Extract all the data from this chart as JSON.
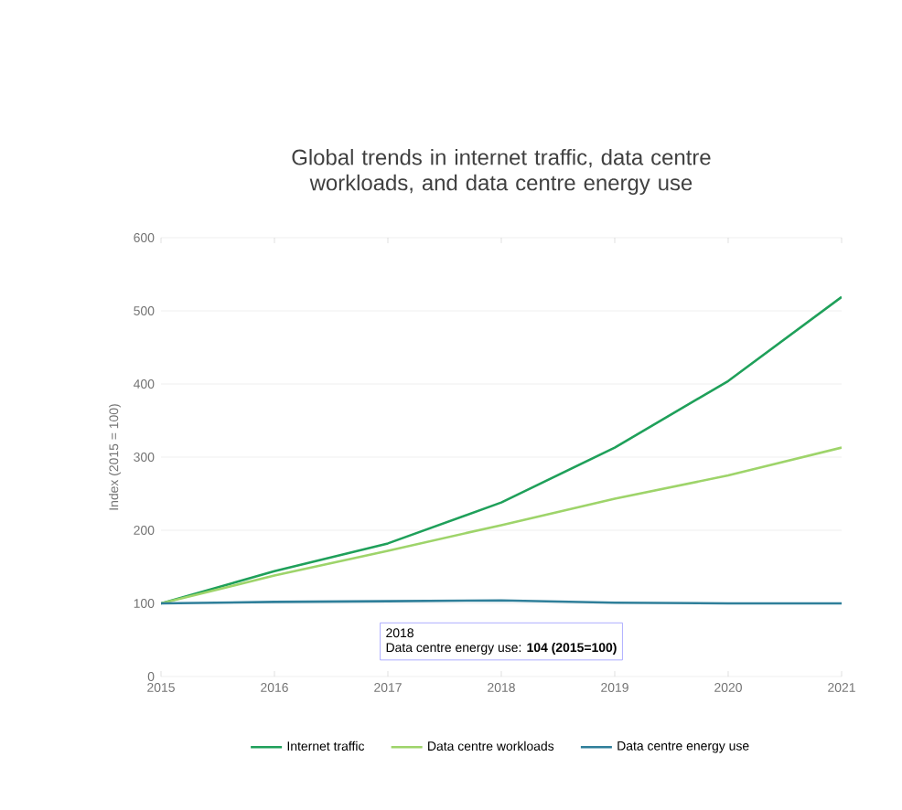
{
  "chart_data": {
    "type": "line",
    "title": "Global trends in internet traffic, data centre workloads, and data centre energy use",
    "ylabel": "Index (2015 = 100)",
    "x": [
      2015,
      2016,
      2017,
      2018,
      2019,
      2020,
      2021
    ],
    "xlim": [
      2015,
      2021
    ],
    "xticks": [
      2015,
      2016,
      2017,
      2018,
      2019,
      2020,
      2021
    ],
    "ylim": [
      0,
      600
    ],
    "yticks": [
      0,
      100,
      200,
      300,
      400,
      500,
      600
    ],
    "grid": "y",
    "legend": "bottom",
    "marker": "none",
    "series": [
      {
        "name": "Internet traffic",
        "color": "#1fa05a",
        "values": [
          100,
          144,
          182,
          238,
          313,
          404,
          519
        ]
      },
      {
        "name": "Data centre workloads",
        "color": "#9ed46a",
        "values": [
          100,
          138,
          172,
          207,
          243,
          275,
          313
        ]
      },
      {
        "name": "Data centre energy use",
        "color": "#2f7f9a",
        "values": [
          100,
          102,
          103,
          104,
          101,
          100,
          100
        ]
      }
    ],
    "annotations": [
      "2018",
      "Data centre energy use: **104 (2015=100)**"
    ]
  }
}
